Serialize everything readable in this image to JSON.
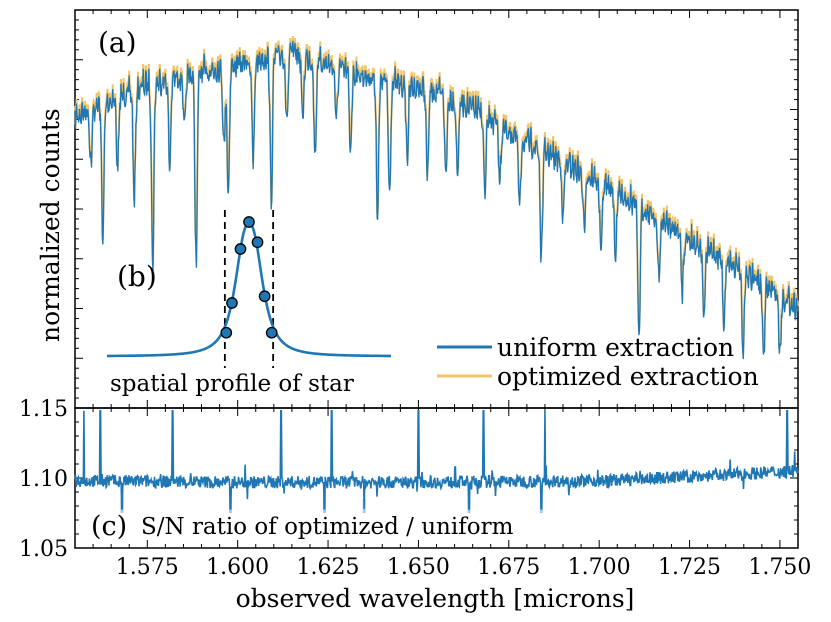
{
  "colors": {
    "uniform": "#1f77b4",
    "optimized": "#f2c46b",
    "axis": "#000000"
  },
  "panel_a": {
    "label": "(a)",
    "ylabel": "normalized counts",
    "legend": {
      "uniform": "uniform extraction",
      "optimized": "optimized extraction"
    }
  },
  "panel_b": {
    "label": "(b)",
    "caption": "spatial profile of star"
  },
  "panel_c": {
    "label": "(c)",
    "caption": "S/N ratio of optimized / uniform"
  },
  "xaxis": {
    "label": "observed wavelength [microns]"
  },
  "chart_data": [
    {
      "type": "line",
      "panel": "a",
      "title": "",
      "xlabel": "",
      "ylabel": "normalized counts",
      "xlim": [
        1.555,
        1.755
      ],
      "ylim": [
        0.0,
        1.0
      ],
      "legend_position": "bottom-right",
      "series": [
        {
          "name": "uniform extraction",
          "envelope_x": [
            1.555,
            1.565,
            1.575,
            1.585,
            1.595,
            1.605,
            1.615,
            1.625,
            1.635,
            1.645,
            1.655,
            1.665,
            1.675,
            1.685,
            1.695,
            1.705,
            1.715,
            1.725,
            1.735,
            1.745,
            1.755
          ],
          "envelope_y": [
            0.78,
            0.82,
            0.86,
            0.88,
            0.9,
            0.92,
            0.94,
            0.91,
            0.88,
            0.86,
            0.84,
            0.8,
            0.74,
            0.69,
            0.64,
            0.59,
            0.53,
            0.47,
            0.42,
            0.36,
            0.3
          ],
          "absorption_lines": [
            {
              "x": 1.5594,
              "depth": 0.14
            },
            {
              "x": 1.5627,
              "depth": 0.34
            },
            {
              "x": 1.5668,
              "depth": 0.18
            },
            {
              "x": 1.5714,
              "depth": 0.28
            },
            {
              "x": 1.5765,
              "depth": 0.46
            },
            {
              "x": 1.5812,
              "depth": 0.22
            },
            {
              "x": 1.5853,
              "depth": 0.14
            },
            {
              "x": 1.5885,
              "depth": 0.48
            },
            {
              "x": 1.5962,
              "depth": 0.2
            },
            {
              "x": 1.5974,
              "depth": 0.32
            },
            {
              "x": 1.6043,
              "depth": 0.26
            },
            {
              "x": 1.6093,
              "depth": 0.36
            },
            {
              "x": 1.6136,
              "depth": 0.18
            },
            {
              "x": 1.618,
              "depth": 0.16
            },
            {
              "x": 1.6214,
              "depth": 0.24
            },
            {
              "x": 1.6273,
              "depth": 0.14
            },
            {
              "x": 1.6312,
              "depth": 0.2
            },
            {
              "x": 1.6387,
              "depth": 0.34
            },
            {
              "x": 1.642,
              "depth": 0.28
            },
            {
              "x": 1.6469,
              "depth": 0.18
            },
            {
              "x": 1.6525,
              "depth": 0.22
            },
            {
              "x": 1.6576,
              "depth": 0.2
            },
            {
              "x": 1.6608,
              "depth": 0.18
            },
            {
              "x": 1.6684,
              "depth": 0.2
            },
            {
              "x": 1.6725,
              "depth": 0.14
            },
            {
              "x": 1.678,
              "depth": 0.18
            },
            {
              "x": 1.684,
              "depth": 0.28
            },
            {
              "x": 1.69,
              "depth": 0.14
            },
            {
              "x": 1.6958,
              "depth": 0.14
            },
            {
              "x": 1.7005,
              "depth": 0.18
            },
            {
              "x": 1.7045,
              "depth": 0.16
            },
            {
              "x": 1.711,
              "depth": 0.34
            },
            {
              "x": 1.7165,
              "depth": 0.16
            },
            {
              "x": 1.723,
              "depth": 0.14
            },
            {
              "x": 1.729,
              "depth": 0.18
            },
            {
              "x": 1.7345,
              "depth": 0.16
            },
            {
              "x": 1.7398,
              "depth": 0.22
            },
            {
              "x": 1.7455,
              "depth": 0.18
            },
            {
              "x": 1.75,
              "depth": 0.14
            }
          ]
        },
        {
          "name": "optimized extraction",
          "offset": 0.012,
          "note_values": "same profile as uniform, slightly higher"
        }
      ]
    },
    {
      "type": "line",
      "panel": "b",
      "title": "spatial profile of star",
      "x": [
        -6,
        -5,
        -4,
        -3,
        -2,
        -1.5,
        -1,
        -0.5,
        0,
        0.5,
        1,
        1.5,
        2,
        3,
        4,
        5,
        6
      ],
      "y": [
        0.01,
        0.015,
        0.03,
        0.07,
        0.18,
        0.3,
        0.55,
        0.82,
        1.0,
        0.82,
        0.55,
        0.3,
        0.18,
        0.07,
        0.03,
        0.015,
        0.01
      ],
      "points_x": [
        -1.6,
        -1.2,
        -0.6,
        0.0,
        0.6,
        1.1,
        1.6
      ],
      "points_y": [
        0.18,
        0.4,
        0.8,
        1.0,
        0.85,
        0.45,
        0.18
      ],
      "dashed_bounds_x": [
        -1.7,
        1.7
      ]
    },
    {
      "type": "line",
      "panel": "c",
      "title": "S/N ratio of optimized / uniform",
      "xlabel": "observed wavelength [microns]",
      "ylabel": "",
      "xlim": [
        1.555,
        1.755
      ],
      "ylim": [
        1.05,
        1.15
      ],
      "series": [
        {
          "name": "S/N ratio",
          "baseline_x": [
            1.555,
            1.6,
            1.65,
            1.7,
            1.725,
            1.755
          ],
          "baseline_y": [
            1.098,
            1.097,
            1.097,
            1.098,
            1.101,
            1.105
          ],
          "spikes_up": [
            1.5575,
            1.562,
            1.582,
            1.612,
            1.626,
            1.65,
            1.668,
            1.685,
            1.752
          ],
          "spikes_down": [
            1.568,
            1.598,
            1.624,
            1.635,
            1.664,
            1.684
          ]
        }
      ]
    }
  ],
  "axes_ticks": {
    "x": [
      "1.575",
      "1.600",
      "1.625",
      "1.650",
      "1.675",
      "1.700",
      "1.725",
      "1.750"
    ],
    "c_y": [
      "1.05",
      "1.10",
      "1.15"
    ]
  }
}
